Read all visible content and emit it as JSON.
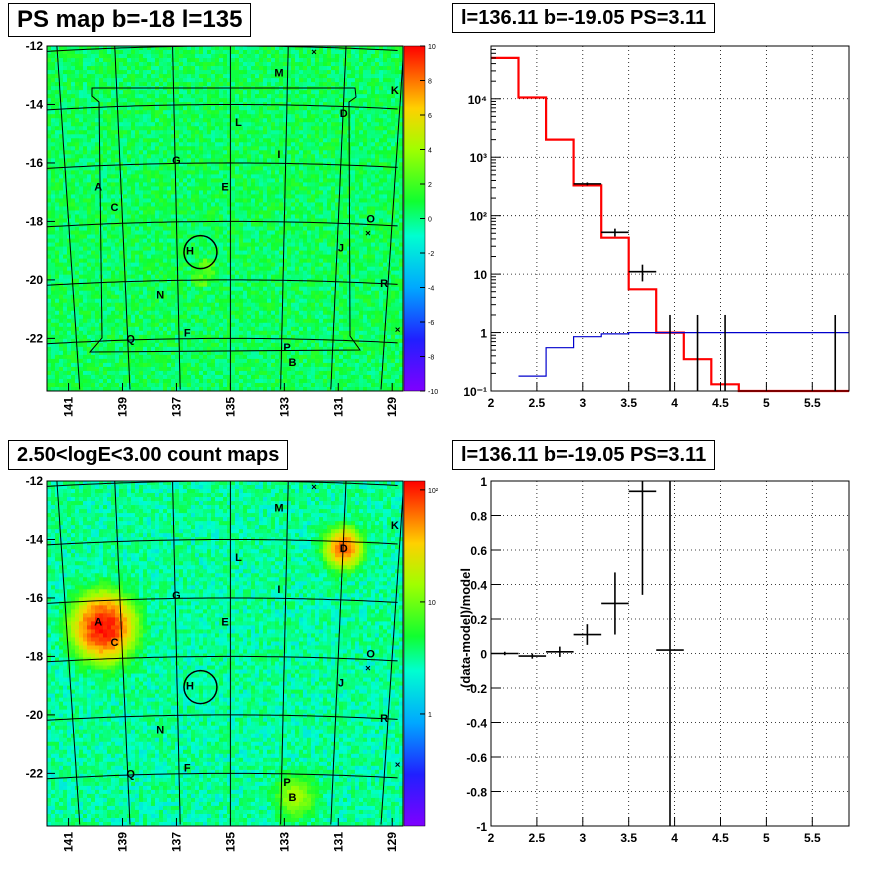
{
  "titles": {
    "top_left": "PS map b=-18 l=135",
    "top_right": "l=136.11 b=-19.05 PS=3.11",
    "bottom_left": "2.50<logE<3.00 count maps",
    "bottom_right": "l=136.11 b=-19.05 PS=3.11"
  },
  "chart_data": [
    {
      "type": "heatmap",
      "title": "PS map b=-18 l=135",
      "x_ticks": [
        "141",
        "139",
        "137",
        "135",
        "133",
        "131",
        "129"
      ],
      "y_ticks": [
        "-12",
        "-14",
        "-16",
        "-18",
        "-20",
        "-22"
      ],
      "xlim": [
        141.8,
        128.6
      ],
      "ylim": [
        -23.8,
        -12
      ],
      "colorbar_ticks": [
        "10",
        "8",
        "6",
        "4",
        "2",
        "0",
        "-2",
        "-4",
        "-6",
        "-8",
        "-10"
      ],
      "colorbar_range": [
        -10,
        10
      ],
      "background_level": 0.5,
      "colors": {
        "low": "#8000ff",
        "mid": "#19ff19",
        "high": "#ff0000"
      },
      "sources": [
        {
          "label": "A",
          "l": 139.9,
          "b": -16.8
        },
        {
          "label": "B",
          "l": 132.7,
          "b": -22.8
        },
        {
          "label": "C",
          "l": 139.3,
          "b": -17.5
        },
        {
          "label": "D",
          "l": 130.8,
          "b": -14.3
        },
        {
          "label": "E",
          "l": 135.2,
          "b": -16.8
        },
        {
          "label": "F",
          "l": 136.6,
          "b": -21.8
        },
        {
          "label": "G",
          "l": 137.0,
          "b": -15.9
        },
        {
          "label": "H",
          "l": 136.5,
          "b": -19.0
        },
        {
          "label": "I",
          "l": 133.2,
          "b": -15.7
        },
        {
          "label": "J",
          "l": 130.9,
          "b": -18.9
        },
        {
          "label": "K",
          "l": 128.9,
          "b": -13.5
        },
        {
          "label": "L",
          "l": 134.7,
          "b": -14.6
        },
        {
          "label": "M",
          "l": 133.2,
          "b": -12.9
        },
        {
          "label": "N",
          "l": 137.6,
          "b": -20.5
        },
        {
          "label": "O",
          "l": 129.8,
          "b": -17.9
        },
        {
          "label": "P",
          "l": 132.9,
          "b": -22.3
        },
        {
          "label": "Q",
          "l": 138.7,
          "b": -22.0
        },
        {
          "label": "R",
          "l": 129.3,
          "b": -20.1
        }
      ],
      "crosses": [
        {
          "l": 131.9,
          "b": -12.2
        },
        {
          "l": 129.9,
          "b": -18.4
        },
        {
          "l": 128.8,
          "b": -21.7
        }
      ],
      "circle": {
        "l": 136.11,
        "b": -19.05,
        "radius_deg": 0.5
      }
    },
    {
      "type": "line",
      "title": "l=136.11 b=-19.05 PS=3.11",
      "xlim": [
        2,
        5.9
      ],
      "ylim": [
        0.1,
        80000
      ],
      "yscale": "log",
      "grid": true,
      "x_ticks": [
        "2",
        "2.5",
        "3",
        "3.5",
        "4",
        "4.5",
        "5",
        "5.5"
      ],
      "y_ticks": [
        {
          "value": 0.1,
          "label": "10⁻¹"
        },
        {
          "value": 1,
          "label": "1"
        },
        {
          "value": 10,
          "label": "10"
        },
        {
          "value": 100,
          "label": "10²"
        },
        {
          "value": 1000,
          "label": "10³"
        },
        {
          "value": 10000,
          "label": "10⁴"
        }
      ],
      "series": [
        {
          "color": "#ff0000",
          "edges": [
            2.0,
            2.3,
            2.6,
            2.9,
            3.2,
            3.5,
            3.8,
            4.1,
            4.4,
            4.7,
            5.0,
            5.3,
            5.6,
            5.9
          ],
          "values": [
            50000,
            10500,
            2000,
            330,
            42,
            5.5,
            1.0,
            0.35,
            0.13,
            0.1,
            0.1,
            0.1,
            0.1
          ]
        },
        {
          "color": "#0000cc",
          "edges": [
            2.0,
            2.3,
            2.6,
            2.9,
            3.2,
            3.5,
            3.8,
            4.1,
            4.4,
            4.7,
            5.0,
            5.3,
            5.6,
            5.9
          ],
          "values": [
            0.05,
            0.18,
            0.55,
            0.85,
            0.95,
            1.0,
            1.0,
            1.0,
            1.0,
            1.0,
            1.0,
            1.0,
            1.0
          ]
        }
      ],
      "points": [
        {
          "x": 3.05,
          "y": 350,
          "xerr": 0.15,
          "ylo": 330,
          "yhi": 370
        },
        {
          "x": 3.35,
          "y": 52,
          "xerr": 0.15,
          "ylo": 44,
          "yhi": 60
        },
        {
          "x": 3.65,
          "y": 11,
          "xerr": 0.15,
          "ylo": 7.5,
          "yhi": 14.5
        },
        {
          "x": 3.95,
          "y": 0.1,
          "xerr": 0.0,
          "ylo": 0.1,
          "yhi": 2.0
        },
        {
          "x": 4.25,
          "y": 0.1,
          "xerr": 0.0,
          "ylo": 0.1,
          "yhi": 2.0
        },
        {
          "x": 4.55,
          "y": 0.1,
          "xerr": 0.0,
          "ylo": 0.1,
          "yhi": 2.0
        },
        {
          "x": 5.75,
          "y": 0.1,
          "xerr": 0.0,
          "ylo": 0.1,
          "yhi": 2.0
        }
      ]
    },
    {
      "type": "heatmap",
      "title": "2.50<logE<3.00 count maps",
      "x_ticks": [
        "141",
        "139",
        "137",
        "135",
        "133",
        "131",
        "129"
      ],
      "y_ticks": [
        "-12",
        "-14",
        "-16",
        "-18",
        "-20",
        "-22"
      ],
      "xlim": [
        141.8,
        128.6
      ],
      "ylim": [
        -23.8,
        -12
      ],
      "colorbar_ticks": [
        {
          "value": 100,
          "label": "10²"
        },
        {
          "value": 10,
          "label": "10"
        },
        {
          "value": 1,
          "label": "1"
        }
      ],
      "colorbar_range": [
        0.1,
        120
      ],
      "colorbar_scale": "log",
      "background_level": 3,
      "blobs": [
        {
          "l": 139.7,
          "b": -17.0,
          "peak": 110,
          "sigma_deg": 0.55
        },
        {
          "l": 130.8,
          "b": -14.3,
          "peak": 60,
          "sigma_deg": 0.35
        },
        {
          "l": 132.6,
          "b": -22.8,
          "peak": 12,
          "sigma_deg": 0.4
        }
      ],
      "sources_ref": "same as top-left map",
      "circle": {
        "l": 136.11,
        "b": -19.05,
        "radius_deg": 0.5
      }
    },
    {
      "type": "scatter",
      "title": "l=136.11 b=-19.05 PS=3.11",
      "ylabel": "(data-model)/model",
      "xlim": [
        2,
        5.9
      ],
      "ylim": [
        -1,
        1
      ],
      "grid": true,
      "x_ticks": [
        "2",
        "2.5",
        "3",
        "3.5",
        "4",
        "4.5",
        "5",
        "5.5"
      ],
      "y_ticks": [
        "1",
        "0.8",
        "0.6",
        "0.4",
        "0.2",
        "0",
        "-0.2",
        "-0.4",
        "-0.6",
        "-0.8",
        "-1"
      ],
      "points": [
        {
          "x": 2.15,
          "y": 0.0,
          "xerr": 0.15,
          "yerr": 0.01
        },
        {
          "x": 2.45,
          "y": -0.015,
          "xerr": 0.15,
          "yerr": 0.015
        },
        {
          "x": 2.75,
          "y": 0.01,
          "xerr": 0.15,
          "yerr": 0.03
        },
        {
          "x": 3.05,
          "y": 0.11,
          "xerr": 0.15,
          "yerr": 0.06
        },
        {
          "x": 3.35,
          "y": 0.29,
          "xerr": 0.15,
          "yerr": 0.18
        },
        {
          "x": 3.65,
          "y": 0.94,
          "xerr": 0.15,
          "yerr": 0.6
        },
        {
          "x": 3.95,
          "y": 0.02,
          "xerr": 0.15,
          "yerr": 1.2
        }
      ]
    }
  ]
}
